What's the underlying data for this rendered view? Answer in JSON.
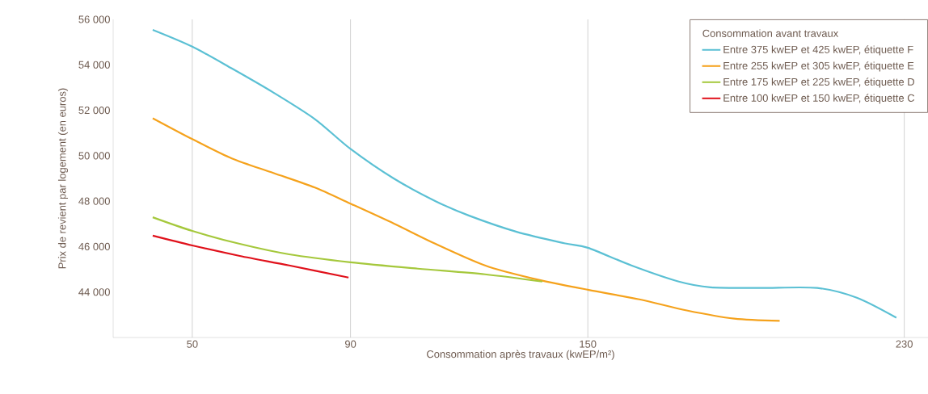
{
  "chart_data": {
    "type": "line",
    "xlabel": "Consommation après travaux (kwEP/m²)",
    "ylabel": "Prix de revient par logement (en euros)",
    "legend_title": "Consommation avant travaux",
    "xlim": [
      30,
      236
    ],
    "ylim": [
      42000,
      56000
    ],
    "xticks": [
      50,
      90,
      150,
      230
    ],
    "yticks": [
      {
        "value": 44000,
        "label": "44 000"
      },
      {
        "value": 46000,
        "label": "46 000"
      },
      {
        "value": 48000,
        "label": "48 000"
      },
      {
        "value": 50000,
        "label": "50 000"
      },
      {
        "value": 52000,
        "label": "52 000"
      },
      {
        "value": 54000,
        "label": "54 000"
      },
      {
        "value": 56000,
        "label": "56 000"
      }
    ],
    "grid": "x",
    "legend": "top right",
    "marker": "none",
    "line_style": "solid",
    "series": [
      {
        "name": "Entre 375 kwEP et 425 kwEP, étiquette F",
        "color": "#5bc0d4",
        "x": [
          40,
          50,
          60,
          70.5,
          81,
          90,
          101,
          111.5,
          120,
          132,
          144,
          150,
          161,
          173,
          181,
          193.5,
          208,
          218,
          228
        ],
        "values": [
          55540,
          54800,
          53840,
          52780,
          51610,
          50300,
          48990,
          48000,
          47360,
          46650,
          46150,
          45950,
          45170,
          44460,
          44210,
          44180,
          44180,
          43750,
          42870
        ]
      },
      {
        "name": "Entre 255 kwEP et 305 kwEP, étiquette E",
        "color": "#f5a21c",
        "x": [
          40,
          50,
          60,
          70.5,
          81,
          90,
          101,
          111.5,
          124,
          136,
          150,
          163,
          175,
          187,
          198.5
        ],
        "values": [
          51650,
          50730,
          49880,
          49240,
          48600,
          47890,
          47010,
          46120,
          45170,
          44600,
          44100,
          43680,
          43190,
          42830,
          42730
        ]
      },
      {
        "name": "Entre 175 kwEP et 225 kwEP, étiquette D",
        "color": "#a5c83c",
        "x": [
          40,
          50,
          62,
          74.5,
          90,
          107,
          124,
          138.5
        ],
        "values": [
          47290,
          46690,
          46120,
          45660,
          45310,
          45030,
          44780,
          44460
        ]
      },
      {
        "name": "Entre 100 kwEP et 150 kwEP, étiquette C",
        "color": "#e0111b",
        "x": [
          40,
          50,
          62,
          74.5,
          89.5
        ],
        "values": [
          46480,
          46050,
          45590,
          45170,
          44640
        ]
      }
    ]
  }
}
